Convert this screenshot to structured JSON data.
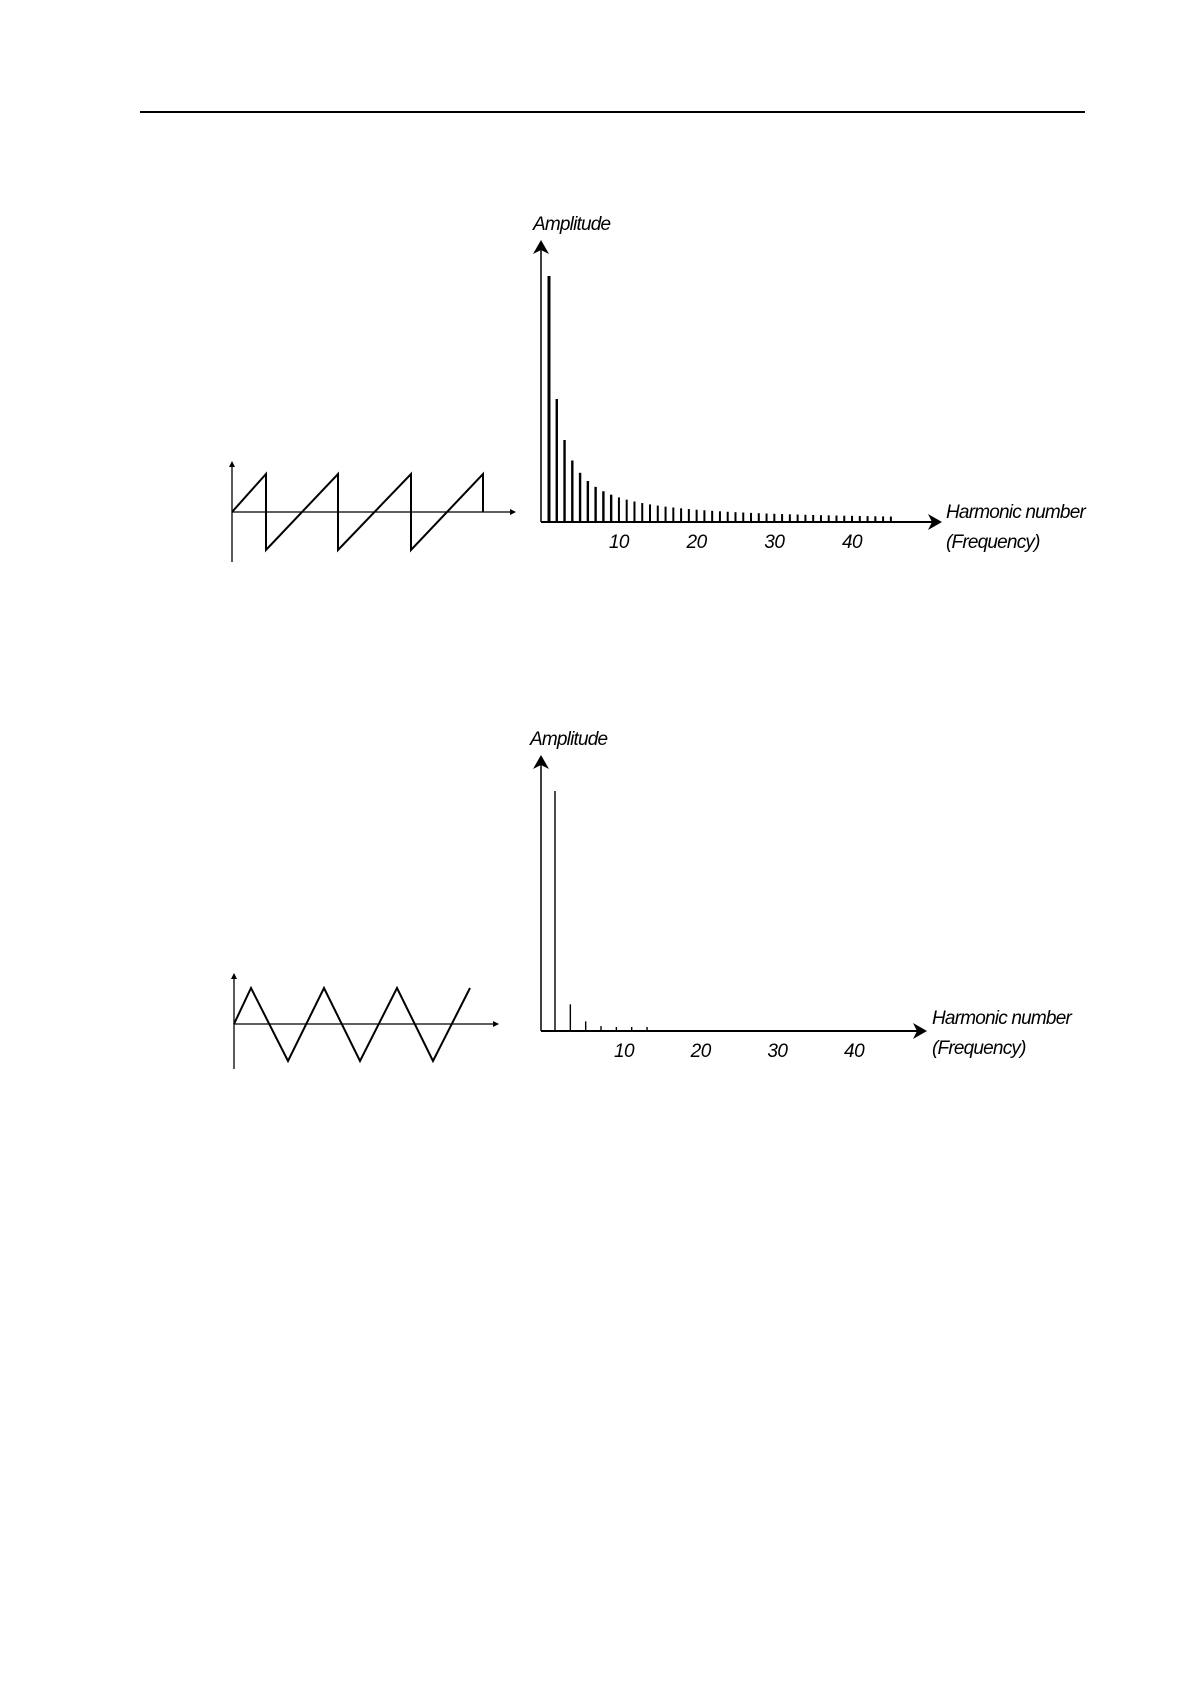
{
  "chart_data": [
    {
      "type": "bar",
      "waveform": "sawtooth",
      "ylabel": "Amplitude",
      "xlabel": [
        "Harmonic number",
        "(Frequency)"
      ],
      "xticks": [
        "10",
        "20",
        "30",
        "40"
      ],
      "harmonics": [
        1,
        2,
        3,
        4,
        5,
        6,
        7,
        8,
        9,
        10,
        11,
        12,
        13,
        14,
        15,
        16,
        17,
        18,
        19,
        20,
        21,
        22,
        23,
        24,
        25,
        26,
        27,
        28,
        29,
        30,
        31,
        32,
        33,
        34,
        35,
        36,
        37,
        38,
        39,
        40,
        41,
        42,
        43,
        44,
        45
      ],
      "amplitude_rule": "1/n",
      "color": "#000000"
    },
    {
      "type": "bar",
      "waveform": "triangle",
      "ylabel": "Amplitude",
      "xlabel": [
        "Harmonic number",
        "(Frequency)"
      ],
      "xticks": [
        "10",
        "20",
        "30",
        "40"
      ],
      "harmonics": [
        1,
        3,
        5,
        7,
        9,
        11,
        13
      ],
      "amplitude_rule": "1/n^2",
      "color": "#000000"
    }
  ]
}
